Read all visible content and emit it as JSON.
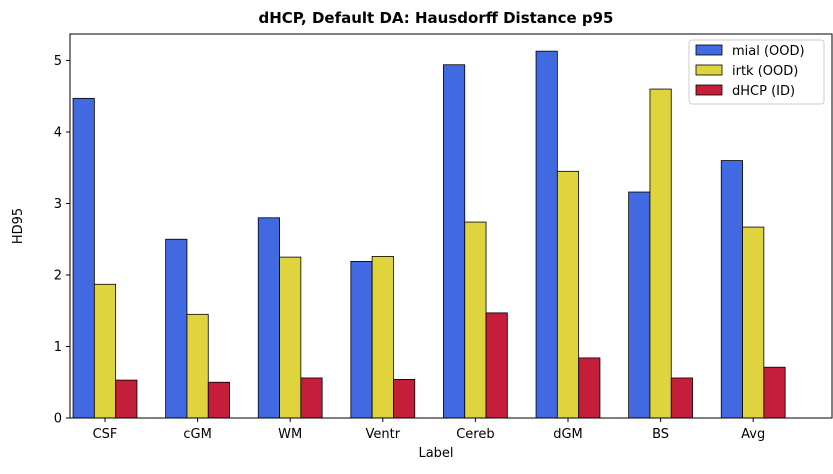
{
  "chart_data": {
    "type": "bar",
    "title": "dHCP, Default DA: Hausdorff Distance p95",
    "xlabel": "Label",
    "ylabel": "HD95",
    "categories": [
      "CSF",
      "cGM",
      "WM",
      "Ventr",
      "Cereb",
      "dGM",
      "BS",
      "Avg"
    ],
    "ylim": [
      0,
      5.37
    ],
    "yticks": [
      0,
      1,
      2,
      3,
      4,
      5
    ],
    "ytick_labels": [
      "0",
      "1",
      "2",
      "3",
      "4",
      "5"
    ],
    "grid": false,
    "legend_position": "top-right",
    "series": [
      {
        "name": "mial (OOD)",
        "color": "#4169e1",
        "values": [
          4.47,
          2.5,
          2.8,
          2.19,
          4.94,
          5.13,
          3.16,
          3.6
        ]
      },
      {
        "name": "irtk (OOD)",
        "color": "#e0d43e",
        "values": [
          1.87,
          1.45,
          2.25,
          2.26,
          2.74,
          3.45,
          4.6,
          2.67
        ]
      },
      {
        "name": "dHCP (ID)",
        "color": "#c41e3a",
        "values": [
          0.53,
          0.5,
          0.56,
          0.54,
          1.47,
          0.84,
          0.56,
          0.71
        ]
      }
    ]
  }
}
